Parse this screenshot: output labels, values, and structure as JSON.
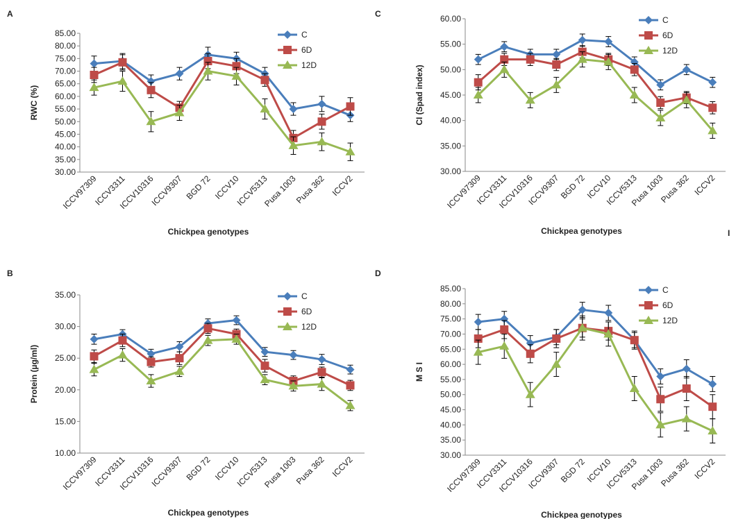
{
  "chart_data": [
    {
      "type": "line",
      "label": "A",
      "ylabel": "RWC (%)",
      "xlabel": "Chickpea genotypes",
      "legend": "upper right",
      "categories": [
        "ICCV97309",
        "ICCV3311",
        "ICCV10316",
        "ICCV9307",
        "BGD 72",
        "ICCV10",
        "ICCV5313",
        "Pusa 1003",
        "Pusa 362",
        "ICCV2"
      ],
      "ylim": [
        30,
        85
      ],
      "yticks": [
        {
          "value": 30,
          "label": "30.00"
        },
        {
          "value": 35,
          "label": "35.00"
        },
        {
          "value": 40,
          "label": "40.00"
        },
        {
          "value": 45,
          "label": "45.00"
        },
        {
          "value": 50,
          "label": "50.00"
        },
        {
          "value": 55,
          "label": "55.00"
        },
        {
          "value": 60,
          "label": "60.00"
        },
        {
          "value": 65,
          "label": "65.00"
        },
        {
          "value": 70,
          "label": "70.00"
        },
        {
          "value": 75,
          "label": "75.00"
        },
        {
          "value": 80,
          "label": "80.00"
        },
        {
          "value": 85,
          "label": "85.00"
        }
      ],
      "series": [
        {
          "name": "C",
          "color": "#4a7ebb",
          "marker": "diamond",
          "values": [
            73,
            74,
            66,
            69,
            76.5,
            75,
            69,
            55,
            57,
            52.5
          ],
          "errors": [
            3,
            3,
            2.5,
            2.5,
            3,
            2.5,
            2.5,
            2.5,
            3,
            2.5
          ]
        },
        {
          "name": "6D",
          "color": "#be4b48",
          "marker": "square",
          "values": [
            68.5,
            73.5,
            62.5,
            55.5,
            74,
            72,
            66.5,
            43.5,
            50,
            56
          ],
          "errors": [
            3,
            3,
            3,
            2.5,
            3,
            3,
            2.5,
            3,
            3,
            3.5
          ]
        },
        {
          "name": "12D",
          "color": "#98b954",
          "marker": "triangle",
          "values": [
            63.5,
            66,
            50,
            53.5,
            70,
            68,
            55,
            40.5,
            42,
            38
          ],
          "errors": [
            3,
            4,
            4,
            3,
            3.5,
            3.5,
            4,
            3.5,
            3.5,
            3.5
          ]
        }
      ]
    },
    {
      "type": "line",
      "label": "C",
      "ylabel": "CI (Spad index)",
      "xlabel": "Chickpea genotypes",
      "legend": "upper right",
      "annotation": "I",
      "categories": [
        "ICCV97309",
        "ICCV3311",
        "ICCV10316",
        "ICCV9307",
        "BGD 72",
        "ICCV10",
        "ICCV5313",
        "Pusa 1003",
        "Pusa 362",
        "ICCV2"
      ],
      "ylim": [
        30,
        60
      ],
      "yticks": [
        {
          "value": 30,
          "label": "30.00"
        },
        {
          "value": 35,
          "label": "35.00"
        },
        {
          "value": 40,
          "label": "40.00"
        },
        {
          "value": 45,
          "label": "45.00"
        },
        {
          "value": 50,
          "label": "50.00"
        },
        {
          "value": 55,
          "label": "55.00"
        },
        {
          "value": 60,
          "label": "60.00"
        }
      ],
      "series": [
        {
          "name": "C",
          "color": "#4a7ebb",
          "marker": "diamond",
          "values": [
            52,
            54.5,
            53,
            53,
            55.8,
            55.5,
            51.5,
            47,
            50,
            47.5
          ],
          "errors": [
            1,
            1,
            1,
            1,
            1.2,
            1,
            1,
            1,
            1,
            1
          ]
        },
        {
          "name": "6D",
          "color": "#be4b48",
          "marker": "square",
          "values": [
            47.5,
            52,
            52,
            51,
            53.5,
            52,
            50,
            43.5,
            44.5,
            42.5
          ],
          "errors": [
            1.5,
            1.2,
            1.2,
            1.2,
            1.2,
            1.2,
            1.2,
            1.2,
            1.2,
            1.2
          ]
        },
        {
          "name": "12D",
          "color": "#98b954",
          "marker": "triangle",
          "values": [
            45,
            50,
            44,
            47,
            52,
            51.5,
            45,
            40.5,
            44,
            38
          ],
          "errors": [
            1.5,
            1.5,
            1.5,
            1.5,
            1.5,
            1.5,
            1.5,
            1.5,
            1.5,
            1.5
          ]
        }
      ]
    },
    {
      "type": "line",
      "label": "B",
      "ylabel": "Protein (µg/ml)",
      "xlabel": "Chickpea genotypes",
      "legend": "upper right",
      "categories": [
        "ICCV97309",
        "ICCV3311",
        "ICCV10316",
        "ICCV9307",
        "BGD 72",
        "ICCV10",
        "ICCV5313",
        "Pusa 1003",
        "Pusa 362",
        "ICCV2"
      ],
      "ylim": [
        10,
        35
      ],
      "yticks": [
        {
          "value": 10,
          "label": "10.00"
        },
        {
          "value": 15,
          "label": "15.00"
        },
        {
          "value": 20,
          "label": "20.00"
        },
        {
          "value": 25,
          "label": "25.00"
        },
        {
          "value": 30,
          "label": "30.00"
        },
        {
          "value": 35,
          "label": "35.00"
        }
      ],
      "series": [
        {
          "name": "C",
          "color": "#4a7ebb",
          "marker": "diamond",
          "values": [
            28,
            28.8,
            25.7,
            26.8,
            30.5,
            31,
            26,
            25.5,
            24.8,
            23.2
          ],
          "errors": [
            0.8,
            0.7,
            0.7,
            0.8,
            0.7,
            0.7,
            0.7,
            0.7,
            0.8,
            0.7
          ]
        },
        {
          "name": "6D",
          "color": "#be4b48",
          "marker": "square",
          "values": [
            25.3,
            27.8,
            24.4,
            25,
            29.7,
            28.8,
            23.8,
            21.4,
            22.8,
            20.7
          ],
          "errors": [
            1,
            1,
            0.8,
            1,
            0.8,
            0.8,
            1,
            0.8,
            0.8,
            0.8
          ]
        },
        {
          "name": "12D",
          "color": "#98b954",
          "marker": "triangle",
          "values": [
            23.2,
            25.5,
            21.4,
            22.9,
            27.8,
            28,
            21.6,
            20.6,
            20.9,
            17.5
          ],
          "errors": [
            1,
            1,
            1,
            0.8,
            0.8,
            0.8,
            0.8,
            0.8,
            1,
            0.8
          ]
        }
      ]
    },
    {
      "type": "line",
      "label": "D",
      "ylabel": "M S I",
      "xlabel": "Chickpea genotypes",
      "legend": "upper right",
      "categories": [
        "ICCV97309",
        "ICCV3311",
        "ICCV10316",
        "ICCV9307",
        "BGD 72",
        "ICCV10",
        "ICCV5313",
        "Pusa 1003",
        "Pusa 362",
        "ICCV2"
      ],
      "ylim": [
        30,
        85
      ],
      "yticks": [
        {
          "value": 30,
          "label": "30.00"
        },
        {
          "value": 35,
          "label": "35.00"
        },
        {
          "value": 40,
          "label": "40.00"
        },
        {
          "value": 45,
          "label": "45.00"
        },
        {
          "value": 50,
          "label": "50.00"
        },
        {
          "value": 55,
          "label": "55.00"
        },
        {
          "value": 60,
          "label": "60.00"
        },
        {
          "value": 65,
          "label": "65.00"
        },
        {
          "value": 70,
          "label": "70.00"
        },
        {
          "value": 75,
          "label": "75.00"
        },
        {
          "value": 80,
          "label": "80.00"
        },
        {
          "value": 85,
          "label": "85.00"
        }
      ],
      "series": [
        {
          "name": "C",
          "color": "#4a7ebb",
          "marker": "diamond",
          "values": [
            74,
            75,
            67,
            69,
            78,
            77,
            68,
            56,
            58.5,
            53.5
          ],
          "errors": [
            2.5,
            2.5,
            2.5,
            2.5,
            2.5,
            2.5,
            2.5,
            2.5,
            3,
            2.5
          ]
        },
        {
          "name": "6D",
          "color": "#be4b48",
          "marker": "square",
          "values": [
            68.5,
            71.5,
            63.5,
            68.5,
            72,
            71,
            68,
            48.5,
            52,
            46
          ],
          "errors": [
            3,
            3,
            3,
            3,
            3,
            3,
            3,
            4,
            4,
            4
          ]
        },
        {
          "name": "12D",
          "color": "#98b954",
          "marker": "triangle",
          "values": [
            64,
            66,
            50,
            60,
            72,
            70,
            52,
            40,
            42,
            38
          ],
          "errors": [
            4,
            4,
            4,
            4,
            4,
            4,
            4,
            4,
            4,
            4
          ]
        }
      ]
    }
  ]
}
